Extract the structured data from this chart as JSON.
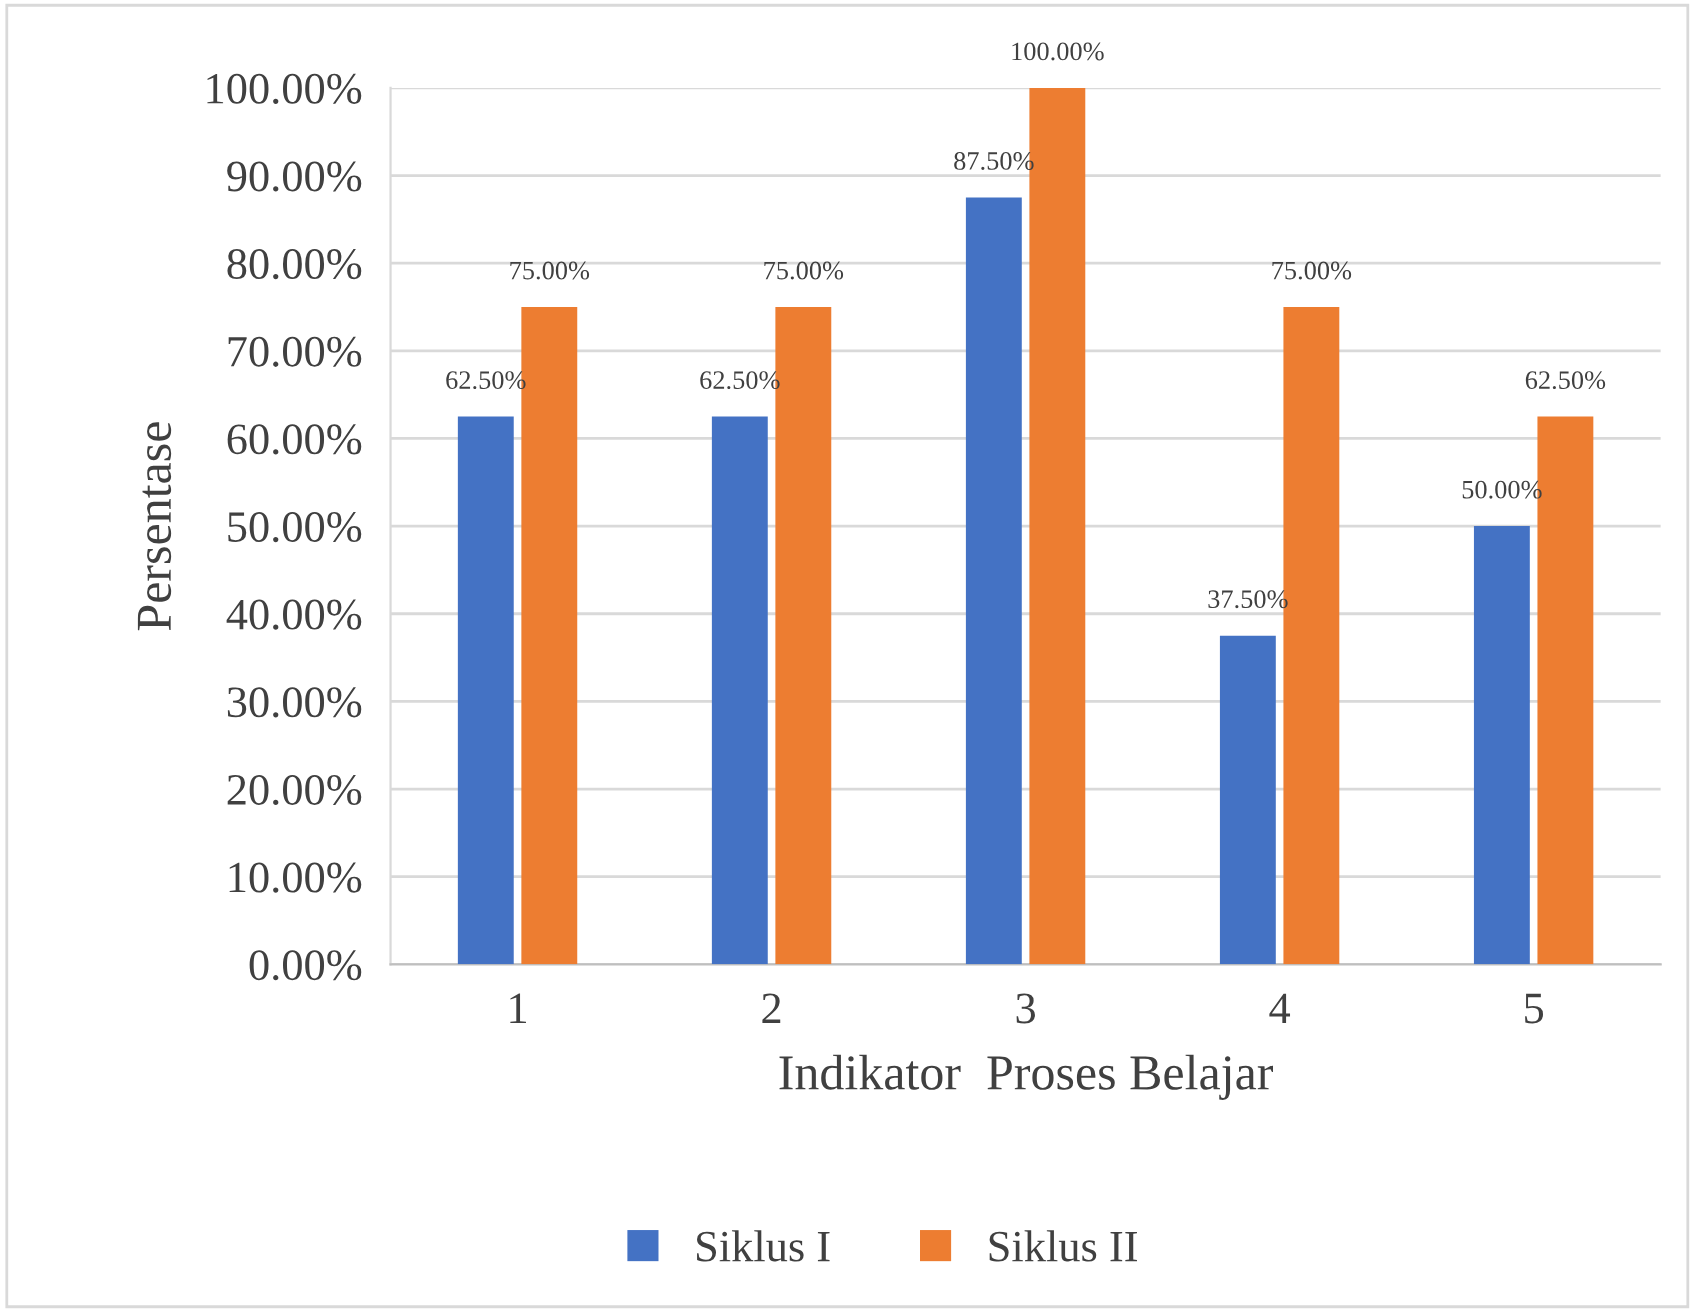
{
  "chart_data": {
    "type": "bar",
    "xlabel": "Indikator  Proses Belajar",
    "ylabel": "Persentase",
    "categories": [
      "1",
      "2",
      "3",
      "4",
      "5"
    ],
    "series": [
      {
        "name": "Siklus I",
        "color": "#4472c4",
        "values": [
          62.5,
          62.5,
          87.5,
          37.5,
          50
        ],
        "value_labels": [
          "62.50%",
          "62.50%",
          "87.50%",
          "37.50%",
          "50.00%"
        ]
      },
      {
        "name": "Siklus II",
        "color": "#ed7d31",
        "values": [
          75,
          75,
          100,
          75,
          62.5
        ],
        "value_labels": [
          "75.00%",
          "75.00%",
          "100.00%",
          "75.00%",
          "62.50%"
        ]
      }
    ],
    "ylim": [
      0,
      100
    ],
    "yticks": [
      {
        "value": 0,
        "label": "0.00%"
      },
      {
        "value": 10,
        "label": "10.00%"
      },
      {
        "value": 20,
        "label": "20.00%"
      },
      {
        "value": 30,
        "label": "30.00%"
      },
      {
        "value": 40,
        "label": "40.00%"
      },
      {
        "value": 50,
        "label": "50.00%"
      },
      {
        "value": 60,
        "label": "60.00%"
      },
      {
        "value": 70,
        "label": "70.00%"
      },
      {
        "value": 80,
        "label": "80.00%"
      },
      {
        "value": 90,
        "label": "90.00%"
      },
      {
        "value": 100,
        "label": "100.00%"
      }
    ],
    "grid": "y",
    "legend": "bottom"
  }
}
